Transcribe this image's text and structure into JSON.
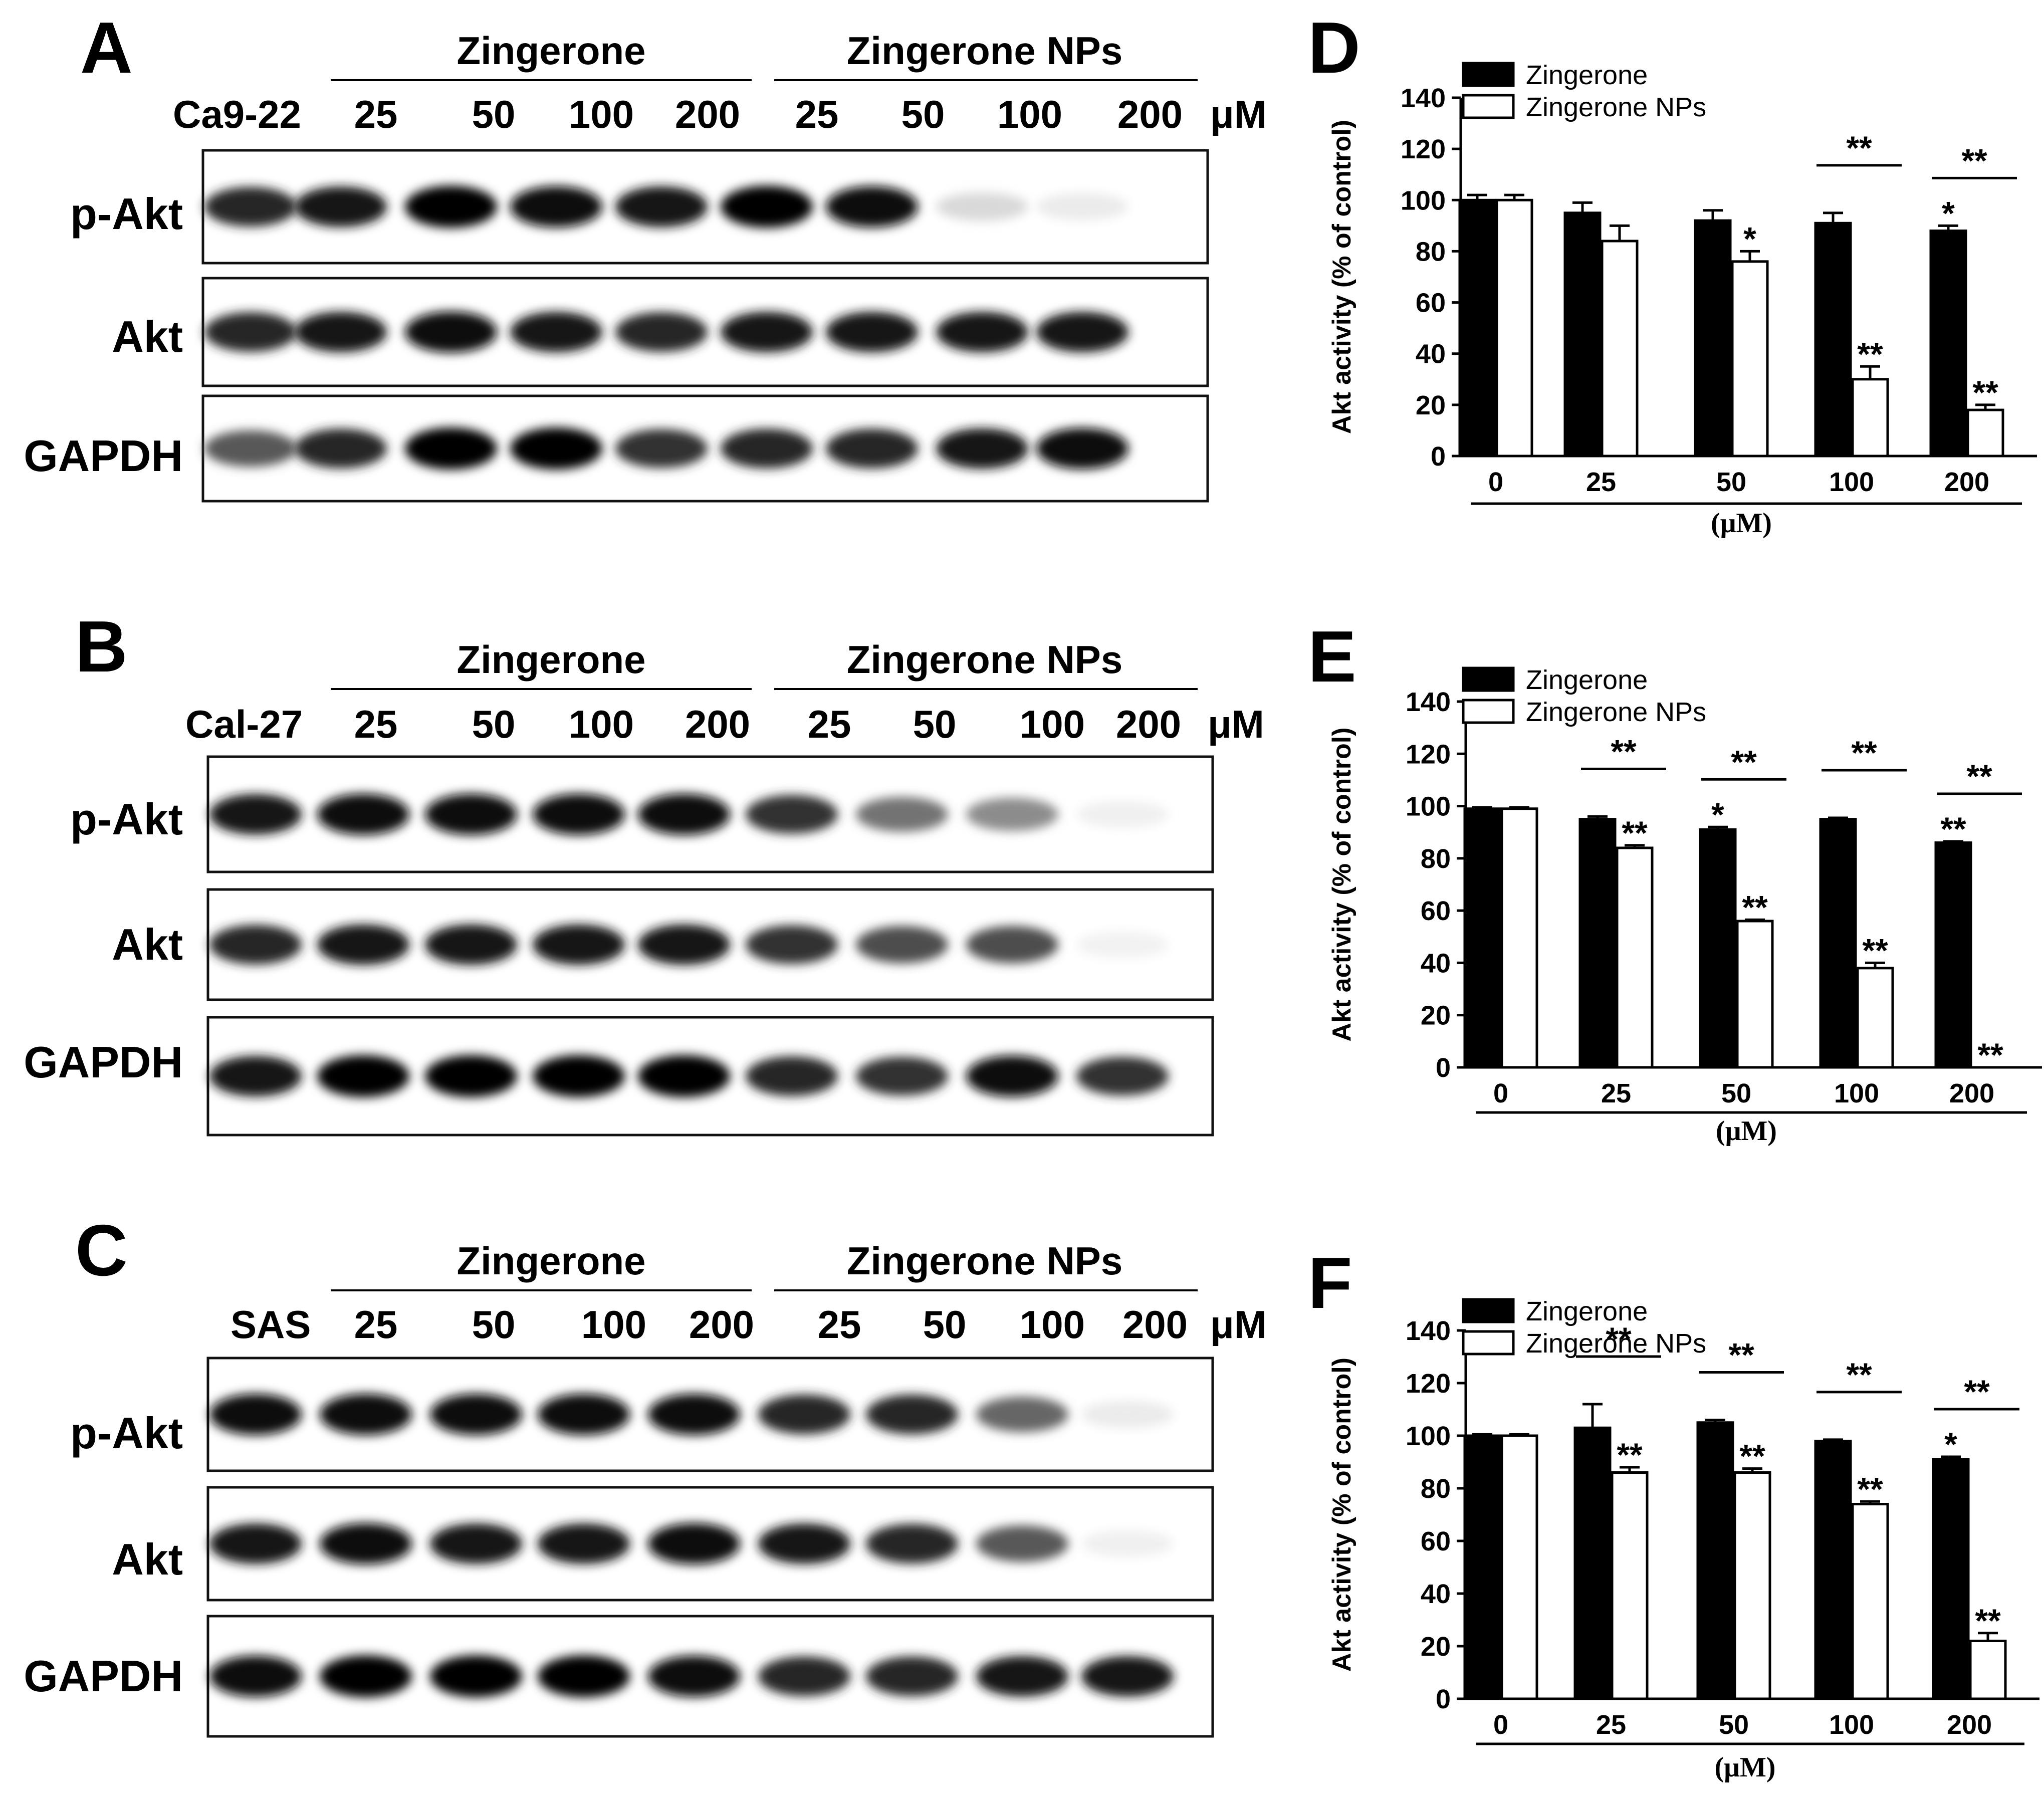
{
  "blots": [
    {
      "panel": "A",
      "cell_line": "Ca9-22",
      "group1": "Zingerone",
      "group2": "Zingerone NPs",
      "doses": [
        "25",
        "50",
        "100",
        "200",
        "25",
        "50",
        "100",
        "200"
      ],
      "unit": "μM",
      "rows": [
        {
          "label": "p-Akt",
          "intensities": [
            0.85,
            0.9,
            1.0,
            0.95,
            0.92,
            1.0,
            0.95,
            0.15,
            0.08
          ]
        },
        {
          "label": "Akt",
          "intensities": [
            0.85,
            0.9,
            0.95,
            0.9,
            0.85,
            0.9,
            0.9,
            0.9,
            0.9
          ]
        },
        {
          "label": "GAPDH",
          "intensities": [
            0.65,
            0.85,
            1.0,
            1.0,
            0.8,
            0.85,
            0.85,
            0.9,
            0.95
          ]
        }
      ]
    },
    {
      "panel": "B",
      "cell_line": "Cal-27",
      "group1": "Zingerone",
      "group2": "Zingerone NPs",
      "doses": [
        "25",
        "50",
        "100",
        "200",
        "25",
        "50",
        "100",
        "200"
      ],
      "unit": "μM",
      "rows": [
        {
          "label": "p-Akt",
          "intensities": [
            0.9,
            0.95,
            0.95,
            0.95,
            0.95,
            0.8,
            0.55,
            0.45,
            0.06
          ]
        },
        {
          "label": "Akt",
          "intensities": [
            0.85,
            0.9,
            0.9,
            0.9,
            0.9,
            0.8,
            0.7,
            0.7,
            0.05
          ]
        },
        {
          "label": "GAPDH",
          "intensities": [
            0.9,
            1.0,
            1.0,
            1.0,
            1.0,
            0.85,
            0.8,
            0.95,
            0.8
          ]
        }
      ]
    },
    {
      "panel": "C",
      "cell_line": "SAS",
      "group1": "Zingerone",
      "group2": "Zingerone NPs",
      "doses": [
        "25",
        "50",
        "100",
        "200",
        "25",
        "50",
        "100",
        "200"
      ],
      "unit": "μM",
      "rows": [
        {
          "label": "p-Akt",
          "intensities": [
            0.95,
            0.95,
            0.95,
            0.95,
            0.95,
            0.85,
            0.85,
            0.6,
            0.08
          ]
        },
        {
          "label": "Akt",
          "intensities": [
            0.9,
            0.95,
            0.9,
            0.9,
            0.95,
            0.9,
            0.85,
            0.65,
            0.06
          ]
        },
        {
          "label": "GAPDH",
          "intensities": [
            0.95,
            1.0,
            1.0,
            1.0,
            0.95,
            0.85,
            0.85,
            0.9,
            0.9
          ]
        }
      ]
    }
  ],
  "chart_data": [
    {
      "panel": "D",
      "type": "bar",
      "categories": [
        "0",
        "25",
        "50",
        "100",
        "200"
      ],
      "xlabel": "(μM)",
      "ylabel": "Akt activity (% of control)",
      "ylim": [
        0,
        140
      ],
      "yticks": [
        "0",
        "20",
        "40",
        "60",
        "80",
        "100",
        "120",
        "140"
      ],
      "legend_position": "top-left",
      "series": [
        {
          "name": "Zingerone",
          "color": "#000000",
          "values": [
            100,
            95,
            92,
            91,
            88
          ],
          "errors": [
            2,
            4,
            4,
            4,
            2
          ],
          "marks": [
            "",
            "",
            "",
            "",
            "*"
          ]
        },
        {
          "name": "Zingerone NPs",
          "color": "#ffffff",
          "values": [
            100,
            84,
            76,
            30,
            18
          ],
          "errors": [
            2,
            6,
            4,
            5,
            2
          ],
          "marks": [
            "",
            "",
            "*",
            "**",
            "**"
          ]
        }
      ],
      "pair_marks": [
        "",
        "",
        "",
        "**",
        "**"
      ]
    },
    {
      "panel": "E",
      "type": "bar",
      "categories": [
        "0",
        "25",
        "50",
        "100",
        "200"
      ],
      "xlabel": "(μM)",
      "ylabel": "Akt activity (% of control)",
      "ylim": [
        0,
        140
      ],
      "yticks": [
        "0",
        "20",
        "40",
        "60",
        "80",
        "100",
        "120",
        "140"
      ],
      "legend_position": "top-left",
      "series": [
        {
          "name": "Zingerone",
          "color": "#000000",
          "values": [
            99,
            95,
            91,
            95,
            86
          ],
          "errors": [
            0.5,
            1,
            1,
            0.5,
            0.5
          ],
          "marks": [
            "",
            "",
            "*",
            "",
            "**"
          ]
        },
        {
          "name": "Zingerone NPs",
          "color": "#ffffff",
          "values": [
            99,
            84,
            56,
            38,
            0
          ],
          "errors": [
            0.5,
            1,
            0.5,
            2,
            0
          ],
          "marks": [
            "",
            "**",
            "**",
            "**",
            "**"
          ]
        }
      ],
      "pair_marks": [
        "",
        "**",
        "**",
        "**",
        "**"
      ]
    },
    {
      "panel": "F",
      "type": "bar",
      "categories": [
        "0",
        "25",
        "50",
        "100",
        "200"
      ],
      "xlabel": "(μM)",
      "ylabel": "Akt activity (% of control)",
      "ylim": [
        0,
        140
      ],
      "yticks": [
        "0",
        "20",
        "40",
        "60",
        "80",
        "100",
        "120",
        "140"
      ],
      "legend_position": "top-left",
      "series": [
        {
          "name": "Zingerone",
          "color": "#000000",
          "values": [
            100,
            103,
            105,
            98,
            91
          ],
          "errors": [
            0.5,
            9,
            1,
            0.5,
            1
          ],
          "marks": [
            "",
            "",
            "",
            "",
            "*"
          ]
        },
        {
          "name": "Zingerone NPs",
          "color": "#ffffff",
          "values": [
            100,
            86,
            86,
            74,
            22
          ],
          "errors": [
            0.5,
            2,
            1.5,
            1,
            3
          ],
          "marks": [
            "",
            "**",
            "**",
            "**",
            "**"
          ]
        }
      ],
      "pair_marks": [
        "",
        "**",
        "**",
        "**",
        "**"
      ]
    }
  ]
}
